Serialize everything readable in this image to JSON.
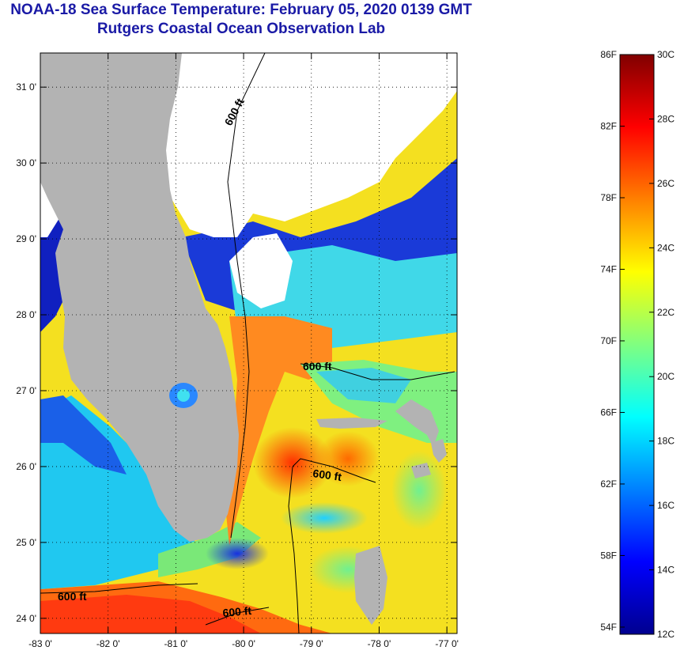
{
  "header": {
    "title": "NOAA-18 Sea Surface Temperature:  February 05, 2020 0139 GMT",
    "subtitle": "Rutgers Coastal Ocean Observation Lab"
  },
  "map": {
    "lon_range": [
      -83,
      -76.85
    ],
    "lat_range": [
      23.8,
      31.45
    ],
    "lon_ticks": [
      {
        "value": -83,
        "label": "-83 0'"
      },
      {
        "value": -82,
        "label": "-82 0'"
      },
      {
        "value": -81,
        "label": "-81 0'"
      },
      {
        "value": -80,
        "label": "-80 0'"
      },
      {
        "value": -79,
        "label": "-79 0'"
      },
      {
        "value": -78,
        "label": "-78 0'"
      },
      {
        "value": -77,
        "label": "-77 0'"
      }
    ],
    "lat_ticks": [
      {
        "value": 31,
        "label": "31 0'"
      },
      {
        "value": 30,
        "label": "30 0'"
      },
      {
        "value": 29,
        "label": "29 0'"
      },
      {
        "value": 28,
        "label": "28 0'"
      },
      {
        "value": 27,
        "label": "27 0'"
      },
      {
        "value": 26,
        "label": "26 0'"
      },
      {
        "value": 25,
        "label": "25 0'"
      },
      {
        "value": 24,
        "label": "24 0'"
      }
    ],
    "contour_labels": [
      "600 ft",
      "600 ft",
      "600 ft",
      "600 ft",
      "600 ft"
    ],
    "colors": {
      "land": "#b3b3b3",
      "cloud": "#ffffff",
      "contour": "#000000"
    }
  },
  "colorbar": {
    "min_c": 12,
    "max_c": 30,
    "c_labels": [
      "30C",
      "28C",
      "26C",
      "24C",
      "22C",
      "20C",
      "18C",
      "16C",
      "14C",
      "12C"
    ],
    "f_labels": [
      "86F",
      "82F",
      "78F",
      "74F",
      "70F",
      "66F",
      "62F",
      "58F",
      "54F"
    ],
    "stops": [
      "#00008f",
      "#0000ff",
      "#0080ff",
      "#00ffff",
      "#80ff80",
      "#ffff00",
      "#ff8000",
      "#ff0000",
      "#800000"
    ]
  }
}
